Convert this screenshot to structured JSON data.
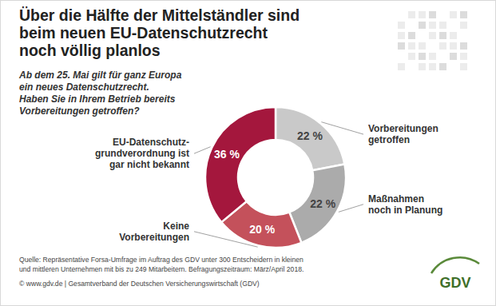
{
  "chart_data": {
    "type": "pie",
    "title": "Über die Hälfte der Mittelständler sind\nbeim neuen EU-Datenschutzrecht\nnoch völlig planlos",
    "subtitle": "Ab dem 25. Mai gilt für ganz Europa\nein neues Datenschutzrecht.\nHaben Sie in Ihrem Betrieb bereits\nVorbereitungen getroffen?",
    "categories": [
      "Vorbereitungen\ngetroffen",
      "Maßnahmen\nnoch in Planung",
      "Keine\nVorbereitungen",
      "EU-Datenschutz-\ngrundverordnung ist\ngar nicht bekannt"
    ],
    "values": [
      22,
      22,
      20,
      36
    ],
    "value_labels": [
      "22 %",
      "22 %",
      "20 %",
      "36 %"
    ],
    "colors": [
      "#c9c9c9",
      "#ababab",
      "#c4515b",
      "#a4173d"
    ],
    "data_labels": true,
    "source": "Quelle: Repräsentative Forsa-Umfrage im Auftrag des GDV unter 300 Entscheidern in kleinen\nund mittleren Unternehmen mit bis zu 249 Mitarbeitern. Befragungszeitraum: März/April 2018.",
    "footer": "© www.gdv.de | Gesamtverband der Deutschen Versicherungswirtschaft (GDV)",
    "logo": "GDV"
  }
}
